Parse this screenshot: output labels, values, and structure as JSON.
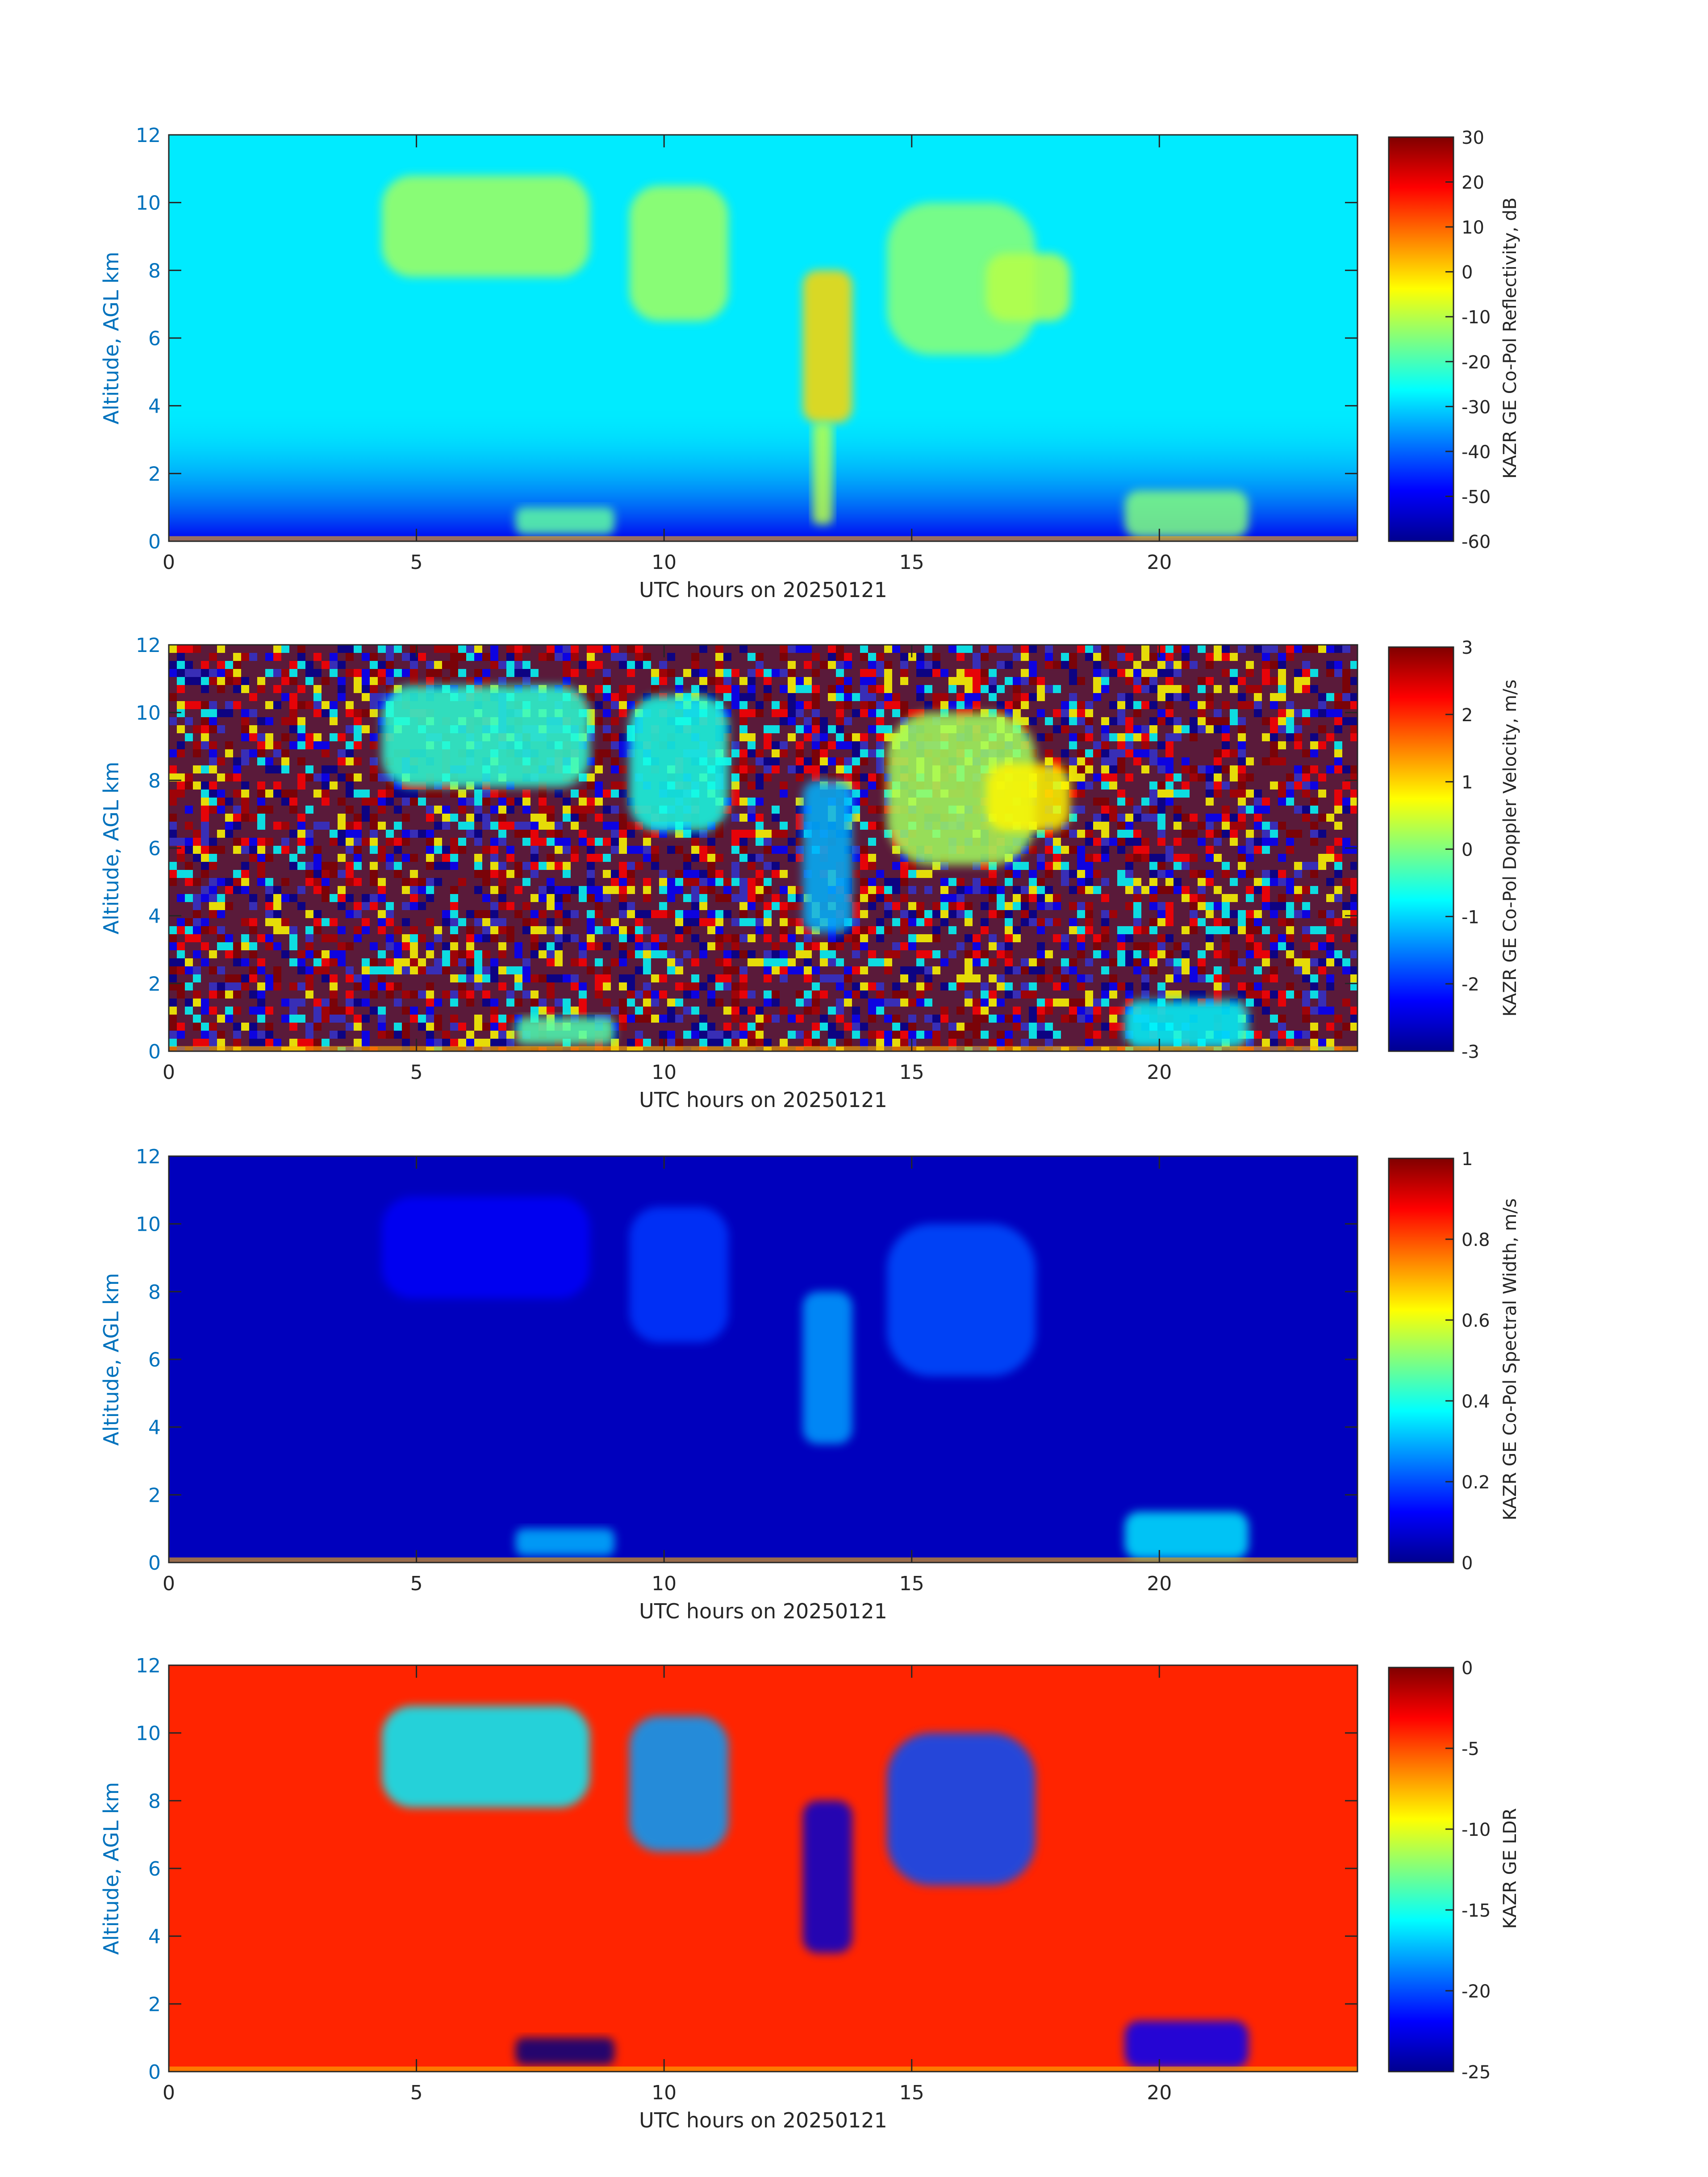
{
  "chart_data": [
    {
      "type": "heatmap",
      "panel": 1,
      "xlabel": "UTC hours on 20250121",
      "ylabel": "Altitude, AGL km",
      "xlim": [
        0,
        24
      ],
      "ylim": [
        0,
        12
      ],
      "xticks": [
        0,
        5,
        10,
        15,
        20
      ],
      "yticks": [
        0,
        2,
        4,
        6,
        8,
        10,
        12
      ],
      "colorbar": {
        "label": "KAZR GE Co-Pol Reflectivity, dB",
        "range": [
          -60,
          30
        ],
        "ticks": [
          30,
          20,
          10,
          0,
          -10,
          -20,
          -30,
          -40,
          -50,
          -60
        ],
        "colormap": "jet"
      },
      "background_value": -28,
      "near_surface_value": -50,
      "features": [
        {
          "x": [
            4.3,
            8.5
          ],
          "y": [
            7.8,
            10.8
          ],
          "value": -12
        },
        {
          "x": [
            9.3,
            11.3
          ],
          "y": [
            6.5,
            10.5
          ],
          "value": -12
        },
        {
          "x": [
            12.8,
            13.8
          ],
          "y": [
            3.5,
            8.0
          ],
          "value": 0
        },
        {
          "x": [
            13.0,
            13.4
          ],
          "y": [
            0.5,
            3.5
          ],
          "value": -10
        },
        {
          "x": [
            14.5,
            17.5
          ],
          "y": [
            5.5,
            10.0
          ],
          "value": -14
        },
        {
          "x": [
            16.5,
            18.2
          ],
          "y": [
            6.5,
            8.5
          ],
          "value": -10
        },
        {
          "x": [
            7.0,
            9.0
          ],
          "y": [
            0.2,
            1.0
          ],
          "value": -18
        },
        {
          "x": [
            19.3,
            21.8
          ],
          "y": [
            0.1,
            1.5
          ],
          "value": -15
        }
      ]
    },
    {
      "type": "heatmap",
      "panel": 2,
      "xlabel": "UTC hours on 20250121",
      "ylabel": "Altitude, AGL km",
      "xlim": [
        0,
        24
      ],
      "ylim": [
        0,
        12
      ],
      "xticks": [
        0,
        5,
        10,
        15,
        20
      ],
      "yticks": [
        0,
        2,
        4,
        6,
        8,
        10,
        12
      ],
      "colorbar": {
        "label": "KAZR GE Co-Pol Doppler Velocity, m/s",
        "range": [
          -3,
          3
        ],
        "ticks": [
          3,
          2,
          1,
          0,
          -1,
          -2,
          -3
        ],
        "colormap": "jet"
      },
      "background": "noise",
      "features": [
        {
          "x": [
            4.3,
            8.5
          ],
          "y": [
            7.8,
            10.8
          ],
          "value": -0.5
        },
        {
          "x": [
            9.3,
            11.3
          ],
          "y": [
            6.5,
            10.5
          ],
          "value": -0.6
        },
        {
          "x": [
            12.8,
            13.8
          ],
          "y": [
            3.5,
            8.0
          ],
          "value": -1.2
        },
        {
          "x": [
            14.5,
            17.5
          ],
          "y": [
            5.5,
            10.0
          ],
          "value": 0.2
        },
        {
          "x": [
            16.5,
            18.2
          ],
          "y": [
            6.5,
            8.5
          ],
          "value": 0.8
        },
        {
          "x": [
            7.0,
            9.0
          ],
          "y": [
            0.2,
            1.0
          ],
          "value": -0.3
        },
        {
          "x": [
            19.3,
            21.8
          ],
          "y": [
            0.1,
            1.5
          ],
          "value": -0.8
        }
      ]
    },
    {
      "type": "heatmap",
      "panel": 3,
      "xlabel": "UTC hours on 20250121",
      "ylabel": "Altitude, AGL km",
      "xlim": [
        0,
        24
      ],
      "ylim": [
        0,
        12
      ],
      "xticks": [
        0,
        5,
        10,
        15,
        20
      ],
      "yticks": [
        0,
        2,
        4,
        6,
        8,
        10,
        12
      ],
      "colorbar": {
        "label": "KAZR GE Co-Pol Spectral Width, m/s",
        "range": [
          0,
          1
        ],
        "ticks": [
          1,
          0.8,
          0.6,
          0.4,
          0.2,
          0
        ],
        "colormap": "jet"
      },
      "background_value": 0.06,
      "features": [
        {
          "x": [
            4.3,
            8.5
          ],
          "y": [
            7.8,
            10.8
          ],
          "value": 0.12
        },
        {
          "x": [
            9.3,
            11.3
          ],
          "y": [
            6.5,
            10.5
          ],
          "value": 0.18
        },
        {
          "x": [
            12.8,
            13.8
          ],
          "y": [
            3.5,
            8.0
          ],
          "value": 0.28
        },
        {
          "x": [
            14.5,
            17.5
          ],
          "y": [
            5.5,
            10.0
          ],
          "value": 0.2
        },
        {
          "x": [
            7.0,
            9.0
          ],
          "y": [
            0.2,
            1.0
          ],
          "value": 0.3
        },
        {
          "x": [
            19.3,
            21.8
          ],
          "y": [
            0.1,
            1.5
          ],
          "value": 0.35
        }
      ]
    },
    {
      "type": "heatmap",
      "panel": 4,
      "xlabel": "UTC hours on 20250121",
      "ylabel": "Altitude, AGL km",
      "xlim": [
        0,
        24
      ],
      "ylim": [
        0,
        12
      ],
      "xticks": [
        0,
        5,
        10,
        15,
        20
      ],
      "yticks": [
        0,
        2,
        4,
        6,
        8,
        10,
        12
      ],
      "colorbar": {
        "label": "KAZR GE LDR",
        "range": [
          -25,
          0
        ],
        "ticks": [
          0,
          -5,
          -10,
          -15,
          -20,
          -25
        ],
        "colormap": "jet"
      },
      "background_value": -4,
      "features": [
        {
          "x": [
            4.3,
            8.5
          ],
          "y": [
            7.8,
            10.8
          ],
          "value": -16
        },
        {
          "x": [
            9.3,
            11.3
          ],
          "y": [
            6.5,
            10.5
          ],
          "value": -18
        },
        {
          "x": [
            12.8,
            13.8
          ],
          "y": [
            3.5,
            8.0
          ],
          "value": -23
        },
        {
          "x": [
            14.5,
            17.5
          ],
          "y": [
            5.5,
            10.0
          ],
          "value": -20
        },
        {
          "x": [
            7.0,
            9.0
          ],
          "y": [
            0.2,
            1.0
          ],
          "value": -25
        },
        {
          "x": [
            19.3,
            21.8
          ],
          "y": [
            0.1,
            1.5
          ],
          "value": -22
        }
      ]
    }
  ]
}
